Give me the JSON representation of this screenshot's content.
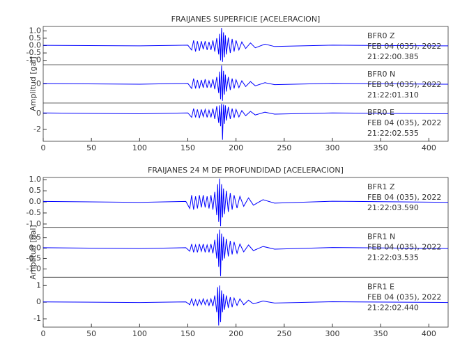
{
  "chart_data": [
    {
      "type": "line",
      "title": "FRAIJANES SUPERFICIE [ACELERACION]",
      "ylabel": "Amplitud [gal]",
      "xlim": [
        0,
        420
      ],
      "xticks": [
        0,
        50,
        100,
        150,
        200,
        250,
        300,
        350,
        400
      ],
      "x": [
        0,
        100,
        150,
        154,
        156,
        158,
        160,
        162,
        164,
        166,
        168,
        170,
        172,
        174,
        176,
        178,
        180,
        182,
        183,
        184,
        185,
        186,
        187,
        188,
        189,
        190,
        192,
        194,
        196,
        198,
        200,
        203,
        206,
        210,
        215,
        220,
        230,
        240,
        300,
        420
      ],
      "series": [
        {
          "name": [
            "BFR0   Z",
            "FEB 04 (035), 2022",
            "21:22:00.385"
          ],
          "color": "#0000ff",
          "ylim": [
            -1.3,
            1.3
          ],
          "yticks": [
            {
              "value": 1,
              "label": "1.0"
            },
            {
              "value": 0.5,
              "label": "0.5"
            },
            {
              "value": 0,
              "label": "0.0"
            },
            {
              "value": -0.5,
              "label": "-0.5"
            },
            {
              "value": -1,
              "label": "-1.0"
            }
          ],
          "values": [
            0.02,
            -0.02,
            0.03,
            -0.3,
            0.35,
            -0.4,
            0.3,
            -0.35,
            0.3,
            -0.25,
            0.3,
            -0.3,
            0.25,
            -0.3,
            0.35,
            -0.4,
            0.5,
            -0.6,
            0.8,
            -1.0,
            1.2,
            -1.1,
            0.9,
            -0.8,
            0.7,
            -0.6,
            0.55,
            -0.5,
            0.45,
            -0.4,
            0.35,
            -0.3,
            0.25,
            -0.2,
            0.18,
            -0.15,
            0.1,
            -0.06,
            0.03,
            -0.02
          ]
        },
        {
          "name": [
            "BFR0   N",
            "FEB 04 (035), 2022",
            "21:22:01.310"
          ],
          "color": "#0000ff",
          "ylim": [
            -2.5,
            2.5
          ],
          "yticks": [
            0
          ],
          "values": [
            0.05,
            -0.05,
            0.06,
            -0.6,
            0.7,
            -0.6,
            0.5,
            -0.6,
            0.5,
            -0.5,
            0.6,
            -0.5,
            0.4,
            -0.5,
            0.6,
            -0.7,
            0.9,
            -1.2,
            1.6,
            -2.0,
            2.4,
            -2.2,
            1.7,
            -1.4,
            1.2,
            -1.0,
            0.9,
            -0.8,
            0.7,
            -0.6,
            0.55,
            -0.5,
            0.4,
            -0.35,
            0.3,
            -0.25,
            0.15,
            -0.1,
            0.06,
            -0.05
          ]
        },
        {
          "name": [
            "BFR0   E",
            "FEB 04 (035), 2022",
            "21:22:02.535"
          ],
          "color": "#0000ff",
          "ylim": [
            -3.5,
            1.3
          ],
          "yticks": [
            0,
            -2
          ],
          "values": [
            0.05,
            -0.05,
            0.06,
            -0.5,
            0.6,
            -0.5,
            0.5,
            -0.6,
            0.5,
            -0.4,
            0.5,
            -0.5,
            0.4,
            -0.5,
            0.6,
            -0.7,
            0.9,
            -1.2,
            1.0,
            -1.6,
            1.2,
            -3.3,
            1.1,
            -1.3,
            1.0,
            -0.9,
            0.8,
            -0.7,
            0.6,
            -0.55,
            0.5,
            -0.45,
            0.35,
            -0.3,
            0.25,
            -0.2,
            0.15,
            -0.1,
            0.06,
            -0.05
          ]
        }
      ]
    },
    {
      "type": "line",
      "title": "FRAIJANES 24 M DE PROFUNDIDAD [ACELERACION]",
      "ylabel": "Amplitud [gal]",
      "xlim": [
        0,
        420
      ],
      "xticks": [
        0,
        50,
        100,
        150,
        200,
        250,
        300,
        350,
        400
      ],
      "x": [
        0,
        100,
        148,
        152,
        154,
        156,
        158,
        160,
        162,
        164,
        166,
        168,
        170,
        172,
        174,
        176,
        178,
        180,
        181,
        182,
        183,
        184,
        185,
        186,
        187,
        188,
        190,
        192,
        194,
        196,
        198,
        201,
        204,
        208,
        213,
        218,
        228,
        240,
        300,
        420
      ],
      "series": [
        {
          "name": [
            "BFR1   Z",
            "FEB 04 (035), 2022",
            "21:22:03.590"
          ],
          "color": "#0000ff",
          "ylim": [
            -1.15,
            1.1
          ],
          "yticks": [
            {
              "value": 1,
              "label": "1.0"
            },
            {
              "value": 0.5,
              "label": "0.5"
            },
            {
              "value": 0,
              "label": "0.0"
            },
            {
              "value": -0.5,
              "label": "-0.5"
            },
            {
              "value": -1,
              "label": "-1.0"
            }
          ],
          "values": [
            0.02,
            -0.02,
            0.02,
            -0.3,
            0.3,
            -0.35,
            0.25,
            -0.3,
            0.3,
            -0.25,
            0.3,
            -0.25,
            0.25,
            -0.3,
            0.3,
            -0.35,
            0.45,
            -0.6,
            0.8,
            -0.9,
            1.05,
            -1.1,
            0.8,
            -0.7,
            0.6,
            -0.55,
            0.5,
            -0.45,
            0.4,
            -0.35,
            0.3,
            -0.28,
            0.25,
            -0.2,
            0.18,
            -0.15,
            0.1,
            -0.06,
            0.03,
            -0.02
          ]
        },
        {
          "name": [
            "BFR1   N",
            "FEB 04 (035), 2022",
            "21:22:03.535"
          ],
          "color": "#0000ff",
          "ylim": [
            -1.4,
            1.0
          ],
          "yticks": [
            {
              "value": 0.5,
              "label": "0.5"
            },
            {
              "value": 0,
              "label": "0.0"
            },
            {
              "value": -0.5,
              "label": "-0.5"
            },
            {
              "value": -1,
              "label": "-1.0"
            }
          ],
          "values": [
            0.02,
            -0.02,
            0.02,
            -0.15,
            0.2,
            -0.2,
            0.15,
            -0.2,
            0.2,
            -0.15,
            0.2,
            -0.2,
            0.15,
            -0.2,
            0.2,
            -0.25,
            0.4,
            -0.5,
            0.7,
            -0.9,
            0.9,
            -1.35,
            0.7,
            -0.6,
            0.55,
            -0.5,
            0.45,
            -0.4,
            0.35,
            -0.3,
            0.3,
            -0.25,
            0.2,
            -0.18,
            0.15,
            -0.12,
            0.08,
            -0.05,
            0.03,
            -0.02
          ]
        },
        {
          "name": [
            "BFR1   E",
            "FEB 04 (035), 2022",
            "21:22:02.440"
          ],
          "color": "#0000ff",
          "ylim": [
            -1.5,
            1.5
          ],
          "yticks": [
            1,
            0,
            -1
          ],
          "values": [
            0.02,
            -0.02,
            0.02,
            -0.15,
            0.2,
            -0.2,
            0.15,
            -0.2,
            0.15,
            -0.15,
            0.2,
            -0.15,
            0.15,
            -0.2,
            0.2,
            -0.25,
            0.4,
            -0.6,
            0.9,
            -1.4,
            1.0,
            -1.2,
            0.7,
            -0.6,
            0.5,
            -0.45,
            0.4,
            -0.35,
            0.3,
            -0.3,
            0.25,
            -0.2,
            0.2,
            -0.15,
            0.12,
            -0.1,
            0.07,
            -0.05,
            0.03,
            -0.02
          ]
        }
      ]
    }
  ]
}
